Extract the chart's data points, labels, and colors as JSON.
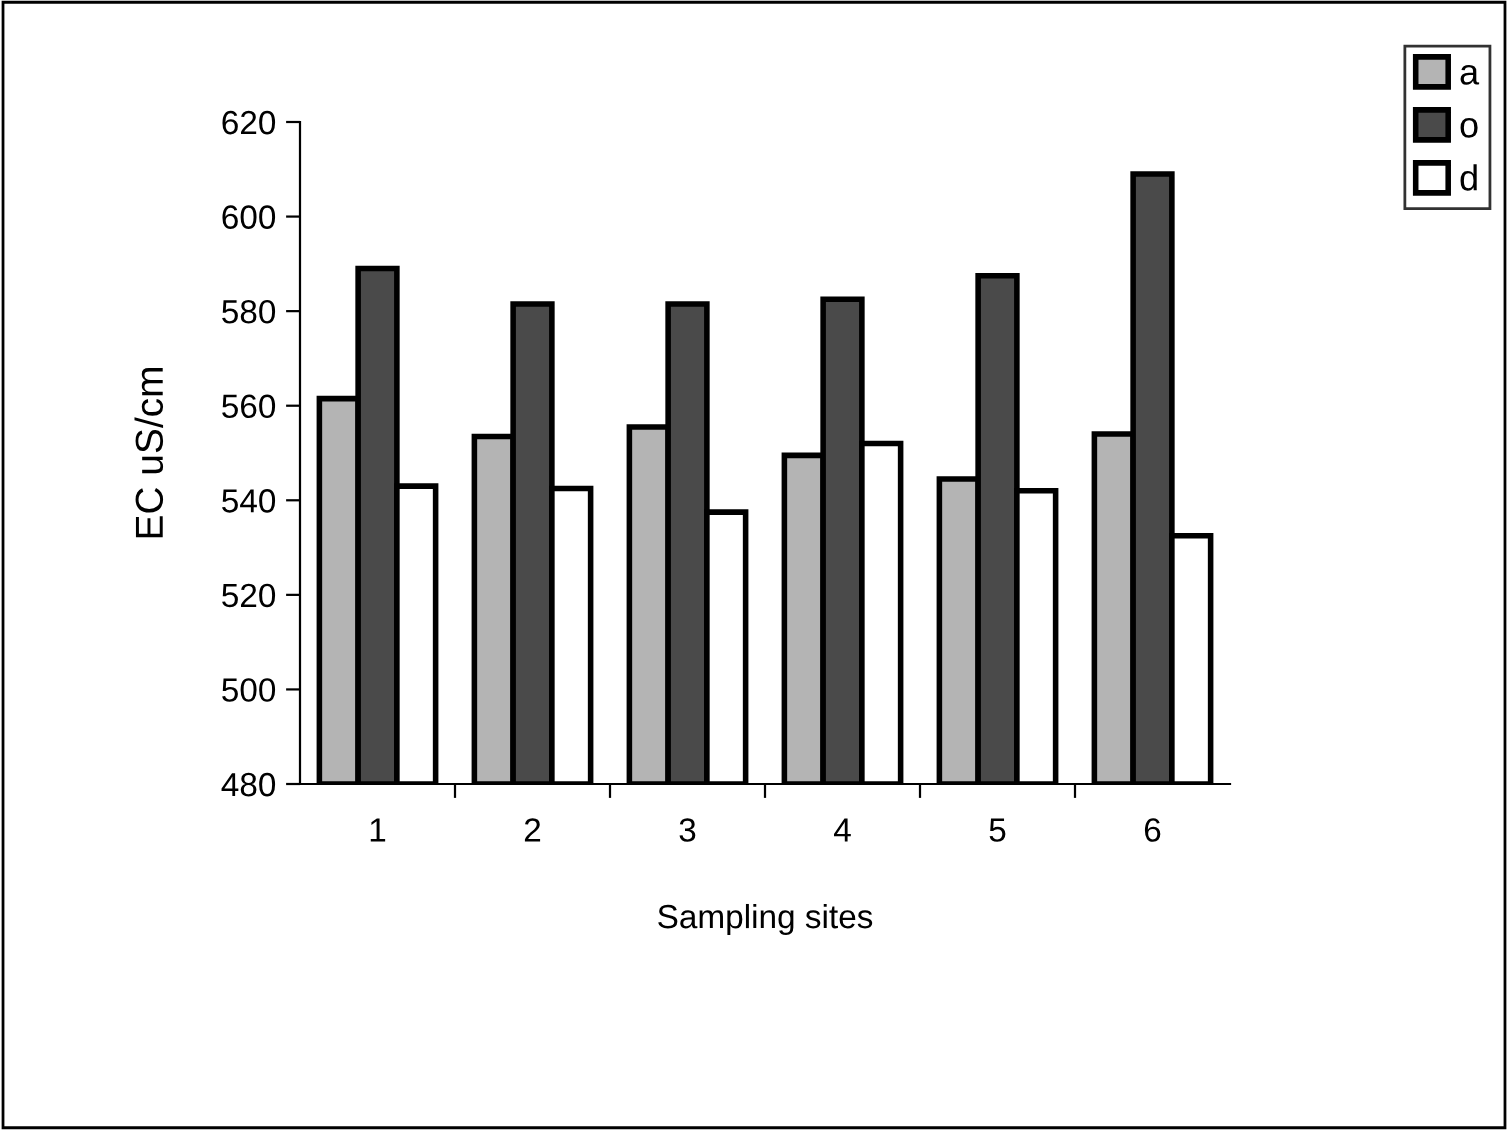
{
  "chart_data": {
    "type": "bar",
    "xlabel": "Sampling sites",
    "ylabel": "EC uS/cm",
    "categories": [
      "1",
      "2",
      "3",
      "4",
      "5",
      "6"
    ],
    "series": [
      {
        "name": "a",
        "color": "#b4b4b4",
        "values": [
          561.5,
          553.5,
          555.5,
          549.5,
          544.5,
          554
        ]
      },
      {
        "name": "o",
        "color": "#4a4a4a",
        "values": [
          589,
          581.5,
          581.5,
          582.5,
          587.5,
          609
        ]
      },
      {
        "name": "d",
        "color": "#ffffff",
        "values": [
          543,
          542.5,
          537.5,
          552,
          542,
          532.5
        ]
      }
    ],
    "ylim": [
      480,
      620
    ],
    "yticks": [
      480,
      500,
      520,
      540,
      560,
      580,
      600,
      620
    ],
    "grid": false,
    "legend": "top right"
  }
}
